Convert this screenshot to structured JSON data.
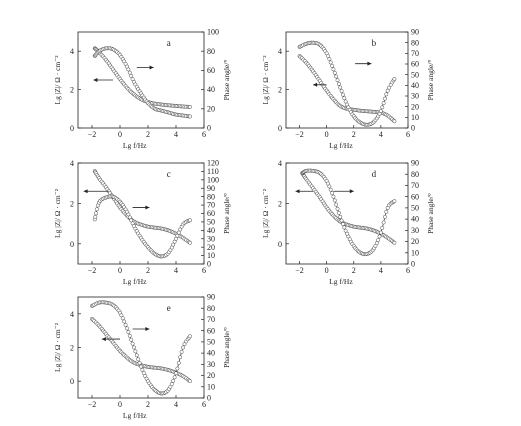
{
  "chart_data": [
    {
      "panel_label": "a",
      "type": "line",
      "xlabel": "Lg  f/Hz",
      "ylabel": "Lg |Z|/ Ω · cm⁻²",
      "y2label": "Phase angle/°",
      "xlim": [
        -3,
        6
      ],
      "xticks": [
        -2,
        0,
        2,
        4,
        6
      ],
      "ylim": [
        0,
        5
      ],
      "yticks": [
        0,
        2,
        4
      ],
      "y2lim": [
        0,
        100
      ],
      "y2ticks": [
        0,
        20,
        40,
        60,
        80,
        100
      ],
      "series": [
        {
          "role": "magnitude",
          "axis": "left",
          "x": [
            -1.8,
            -1.5,
            -1.0,
            -0.5,
            0.0,
            0.5,
            1.0,
            1.5,
            2.0,
            2.5,
            3.0,
            3.5,
            4.0,
            4.5,
            5.0
          ],
          "y": [
            4.15,
            3.95,
            3.55,
            3.05,
            2.55,
            2.1,
            1.75,
            1.5,
            1.35,
            1.27,
            1.22,
            1.18,
            1.15,
            1.12,
            1.1
          ]
        },
        {
          "role": "phase",
          "axis": "right",
          "x": [
            -1.8,
            -1.5,
            -1.0,
            -0.5,
            0.0,
            0.5,
            1.0,
            1.5,
            2.0,
            2.5,
            3.0,
            3.5,
            4.0,
            4.5,
            5.0
          ],
          "y": [
            75,
            80,
            83,
            82,
            76,
            64,
            48,
            36,
            26,
            20,
            18,
            16,
            14,
            13,
            12
          ]
        }
      ],
      "arrows": [
        {
          "x1": 1.2,
          "y1": 3.15,
          "x2": 2.4,
          "y2": 3.15
        },
        {
          "x1": -0.5,
          "y1": 2.5,
          "x2": -1.9,
          "y2": 2.5
        }
      ]
    },
    {
      "panel_label": "b",
      "type": "line",
      "xlabel": "Lg  f/Hz",
      "ylabel": "Lg |Z|/ Ω · cm⁻²",
      "y2label": "Phase angle/°",
      "xlim": [
        -3,
        6
      ],
      "xticks": [
        -2,
        0,
        2,
        4,
        6
      ],
      "ylim": [
        0,
        5
      ],
      "yticks": [
        0,
        2,
        4
      ],
      "y2lim": [
        0,
        90
      ],
      "y2ticks": [
        0,
        10,
        20,
        30,
        40,
        50,
        60,
        70,
        80,
        90
      ],
      "series": [
        {
          "role": "magnitude",
          "axis": "left",
          "x": [
            -2.0,
            -1.5,
            -1.0,
            -0.5,
            0.0,
            0.5,
            1.0,
            1.5,
            2.0,
            2.5,
            3.0,
            3.5,
            4.0,
            4.5,
            5.0
          ],
          "y": [
            3.75,
            3.4,
            2.95,
            2.45,
            1.95,
            1.5,
            1.15,
            1.0,
            0.95,
            0.9,
            0.87,
            0.84,
            0.8,
            0.65,
            0.35
          ]
        },
        {
          "role": "phase",
          "axis": "right",
          "x": [
            -2.0,
            -1.5,
            -1.0,
            -0.5,
            0.0,
            0.5,
            1.0,
            1.5,
            2.0,
            2.5,
            3.0,
            3.5,
            4.0,
            4.5,
            5.0
          ],
          "y": [
            76,
            79,
            80,
            78,
            70,
            55,
            38,
            22,
            11,
            5,
            3,
            6,
            16,
            35,
            46
          ]
        }
      ],
      "arrows": [
        {
          "x1": 2.1,
          "y1": 3.35,
          "x2": 3.3,
          "y2": 3.35
        },
        {
          "x1": 0.0,
          "y1": 2.25,
          "x2": -1.0,
          "y2": 2.25
        }
      ]
    },
    {
      "panel_label": "c",
      "type": "line",
      "xlabel": "Lg  f/Hz",
      "ylabel": "Lg |Z|/ Ω · cm⁻²",
      "y2label": "Phase angle/°",
      "xlim": [
        -3,
        6
      ],
      "xticks": [
        -2,
        0,
        2,
        4,
        6
      ],
      "ylim": [
        -1,
        4
      ],
      "yticks": [
        0,
        2,
        4
      ],
      "y2lim": [
        0,
        120
      ],
      "y2ticks": [
        0,
        10,
        20,
        30,
        40,
        50,
        60,
        70,
        80,
        90,
        100,
        110,
        120
      ],
      "series": [
        {
          "role": "magnitude",
          "axis": "left",
          "x": [
            -1.8,
            -1.5,
            -1.0,
            -0.5,
            0.0,
            0.5,
            1.0,
            1.5,
            2.0,
            2.5,
            3.0,
            3.5,
            4.0,
            4.5,
            5.0
          ],
          "y": [
            3.6,
            3.25,
            2.8,
            2.3,
            1.8,
            1.4,
            1.1,
            0.95,
            0.85,
            0.8,
            0.75,
            0.65,
            0.5,
            0.3,
            0.05
          ]
        },
        {
          "role": "phase",
          "axis": "right",
          "x": [
            -1.8,
            -1.5,
            -1.0,
            -0.5,
            0.0,
            0.5,
            1.0,
            1.5,
            2.0,
            2.5,
            3.0,
            3.5,
            4.0,
            4.5,
            5.0
          ],
          "y": [
            53,
            73,
            79,
            80,
            74,
            62,
            45,
            31,
            20,
            12,
            9,
            14,
            30,
            47,
            52
          ]
        }
      ],
      "arrows": [
        {
          "x1": -0.8,
          "y1": 2.6,
          "x2": -2.6,
          "y2": 2.6
        },
        {
          "x1": 0.9,
          "y1": 1.8,
          "x2": 2.1,
          "y2": 1.8
        }
      ]
    },
    {
      "panel_label": "d",
      "type": "line",
      "xlabel": "Lg  f/Hz",
      "ylabel": "Lg |Z|/ Ω · cm⁻²",
      "y2label": "Phase angle/°",
      "xlim": [
        -3,
        6
      ],
      "xticks": [
        -2,
        0,
        2,
        4,
        6
      ],
      "ylim": [
        -1,
        4
      ],
      "yticks": [
        0,
        2,
        4
      ],
      "y2lim": [
        0,
        90
      ],
      "y2ticks": [
        0,
        10,
        20,
        30,
        40,
        50,
        60,
        70,
        80,
        90
      ],
      "series": [
        {
          "role": "magnitude",
          "axis": "left",
          "x": [
            -1.8,
            -1.5,
            -1.0,
            -0.5,
            0.0,
            0.5,
            1.0,
            1.5,
            2.0,
            2.5,
            3.0,
            3.5,
            4.0,
            4.5,
            5.0
          ],
          "y": [
            3.5,
            3.2,
            2.75,
            2.3,
            1.8,
            1.4,
            1.1,
            0.95,
            0.85,
            0.8,
            0.75,
            0.65,
            0.5,
            0.3,
            0.05
          ]
        },
        {
          "role": "phase",
          "axis": "right",
          "x": [
            -1.8,
            -1.5,
            -1.0,
            -0.5,
            0.0,
            0.5,
            1.0,
            1.5,
            2.0,
            2.5,
            3.0,
            3.5,
            4.0,
            4.5,
            5.0
          ],
          "y": [
            81,
            83,
            83,
            81,
            74,
            60,
            42,
            27,
            16,
            10,
            9,
            14,
            28,
            50,
            56
          ]
        }
      ],
      "arrows": [
        {
          "x1": -1.0,
          "y1": 2.6,
          "x2": -2.3,
          "y2": 2.6
        },
        {
          "x1": 0.5,
          "y1": 2.6,
          "x2": 2.0,
          "y2": 2.6
        }
      ]
    },
    {
      "panel_label": "e",
      "type": "line",
      "xlabel": "Lg  f/Hz",
      "ylabel": "Lg |Z|/ Ω · cm⁻²",
      "y2label": "Phase angle/°",
      "xlim": [
        -3,
        6
      ],
      "xticks": [
        -2,
        0,
        2,
        4,
        6
      ],
      "ylim": [
        -1,
        5
      ],
      "yticks": [
        0,
        2,
        4
      ],
      "y2lim": [
        0,
        90
      ],
      "y2ticks": [
        0,
        10,
        20,
        30,
        40,
        50,
        60,
        70,
        80,
        90
      ],
      "series": [
        {
          "role": "magnitude",
          "axis": "left",
          "x": [
            -2.0,
            -1.5,
            -1.0,
            -0.5,
            0.0,
            0.5,
            1.0,
            1.5,
            2.0,
            2.5,
            3.0,
            3.5,
            4.0,
            4.5,
            5.0
          ],
          "y": [
            3.7,
            3.3,
            2.8,
            2.3,
            1.8,
            1.4,
            1.1,
            0.95,
            0.85,
            0.8,
            0.75,
            0.65,
            0.5,
            0.3,
            0.0
          ]
        },
        {
          "role": "phase",
          "axis": "right",
          "x": [
            -2.0,
            -1.5,
            -1.0,
            -0.5,
            0.0,
            0.5,
            1.0,
            1.5,
            2.0,
            2.5,
            3.0,
            3.5,
            4.0,
            4.5,
            5.0
          ],
          "y": [
            82,
            85,
            85,
            83,
            76,
            62,
            45,
            28,
            15,
            7,
            4,
            8,
            22,
            45,
            55
          ]
        }
      ],
      "arrows": [
        {
          "x1": 0.9,
          "y1": 3.1,
          "x2": 2.1,
          "y2": 3.1
        },
        {
          "x1": 0.0,
          "y1": 2.5,
          "x2": -1.3,
          "y2": 2.5
        }
      ]
    }
  ]
}
